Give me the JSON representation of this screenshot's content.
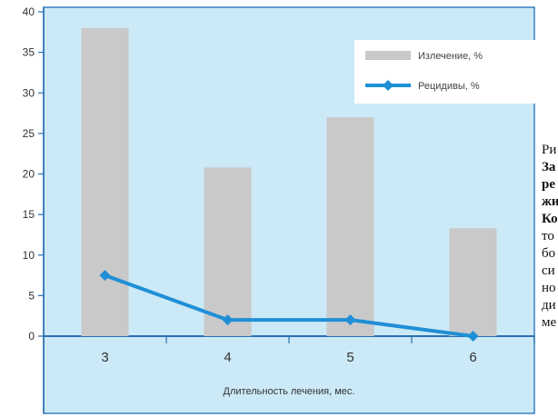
{
  "chart_data": {
    "type": "bar",
    "title": "",
    "xlabel": "Длительность лечения, мес.",
    "ylabel": "",
    "categories": [
      "3",
      "4",
      "5",
      "6"
    ],
    "ylim": [
      0,
      40
    ],
    "yticks": [
      "0",
      "5",
      "10",
      "15",
      "20",
      "25",
      "30",
      "35",
      "40"
    ],
    "grid": false,
    "legend_position": "top-right",
    "series": [
      {
        "name": "Излечение, %",
        "type": "bar",
        "values": [
          38,
          20.8,
          27,
          13.3
        ],
        "color": "#c9c9c9"
      },
      {
        "name": "Рецидивы, %",
        "type": "line",
        "values": [
          7.5,
          2,
          2,
          0
        ],
        "color": "#1f8fd6"
      }
    ],
    "background_color": "#cbe9f7"
  },
  "caption": {
    "lines": [
      "Ри",
      "За",
      "ре",
      "жи",
      "Ко",
      "то",
      "бо",
      "си",
      "но",
      "ди",
      "ме"
    ],
    "bold_lines": [
      1,
      2,
      3,
      4
    ]
  }
}
